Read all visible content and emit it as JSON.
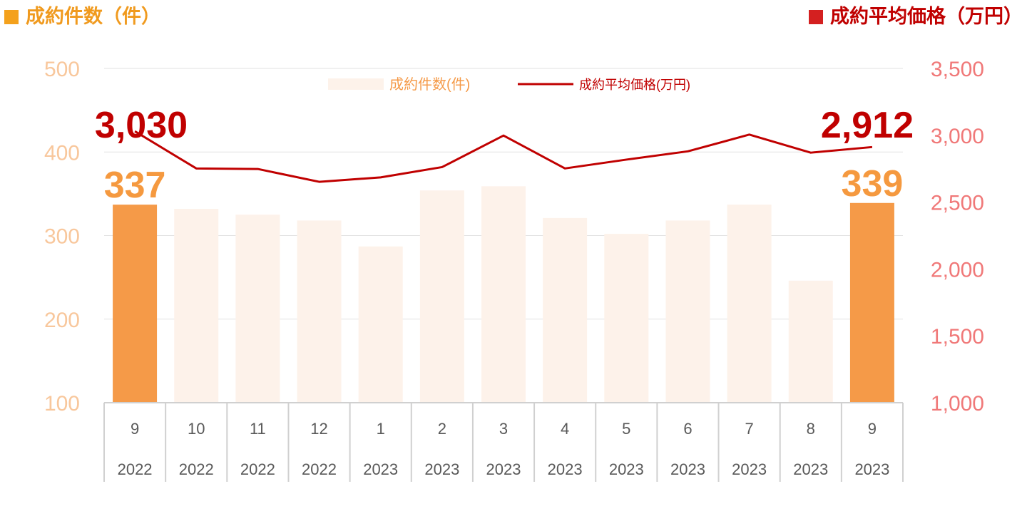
{
  "header": {
    "left_title": "成約件数（件）",
    "right_title": "成約平均価格（万円）"
  },
  "colors": {
    "bar_highlight": "#f59a48",
    "bar_normal": "#fdf2ea",
    "line": "#c00000",
    "left_axis_text": "#f8c79c",
    "right_axis_text": "#f07878",
    "left_header": "#f09a1e",
    "right_header": "#c00000",
    "label_count": "#f5993f",
    "label_price": "#c00000"
  },
  "chart_data": {
    "type": "bar+line",
    "categories": [
      {
        "month": "9",
        "year": "2022"
      },
      {
        "month": "10",
        "year": "2022"
      },
      {
        "month": "11",
        "year": "2022"
      },
      {
        "month": "12",
        "year": "2022"
      },
      {
        "month": "1",
        "year": "2023"
      },
      {
        "month": "2",
        "year": "2023"
      },
      {
        "month": "3",
        "year": "2023"
      },
      {
        "month": "4",
        "year": "2023"
      },
      {
        "month": "5",
        "year": "2023"
      },
      {
        "month": "6",
        "year": "2023"
      },
      {
        "month": "7",
        "year": "2023"
      },
      {
        "month": "8",
        "year": "2023"
      },
      {
        "month": "9",
        "year": "2023"
      }
    ],
    "series": [
      {
        "name": "成約件数(件)",
        "type": "bar",
        "axis": "left",
        "values": [
          337,
          332,
          325,
          318,
          287,
          354,
          359,
          321,
          302,
          318,
          337,
          246,
          339
        ],
        "highlight": [
          true,
          false,
          false,
          false,
          false,
          false,
          false,
          false,
          false,
          false,
          false,
          false,
          true
        ]
      },
      {
        "name": "成約平均価格(万円)",
        "type": "line",
        "axis": "right",
        "values": [
          3030,
          2752,
          2748,
          2652,
          2685,
          2762,
          2998,
          2752,
          2818,
          2880,
          3005,
          2870,
          2912
        ]
      }
    ],
    "left_axis": {
      "min": 100,
      "max": 500,
      "ticks": [
        100,
        200,
        300,
        400,
        500
      ]
    },
    "right_axis": {
      "min": 1000,
      "max": 3500,
      "ticks": [
        "1,000",
        "1,500",
        "2,000",
        "2,500",
        "3,000",
        "3,500"
      ],
      "tick_values": [
        1000,
        1500,
        2000,
        2500,
        3000,
        3500
      ]
    },
    "legend": {
      "position": "top-center",
      "bar_label": "成約件数(件)",
      "line_label": "成約平均価格(万円)"
    },
    "annotations": [
      {
        "series": "count",
        "index": 0,
        "text": "337"
      },
      {
        "series": "count",
        "index": 12,
        "text": "339"
      },
      {
        "series": "price",
        "index": 0,
        "text": "3,030"
      },
      {
        "series": "price",
        "index": 12,
        "text": "2,912"
      }
    ],
    "grid": true
  }
}
